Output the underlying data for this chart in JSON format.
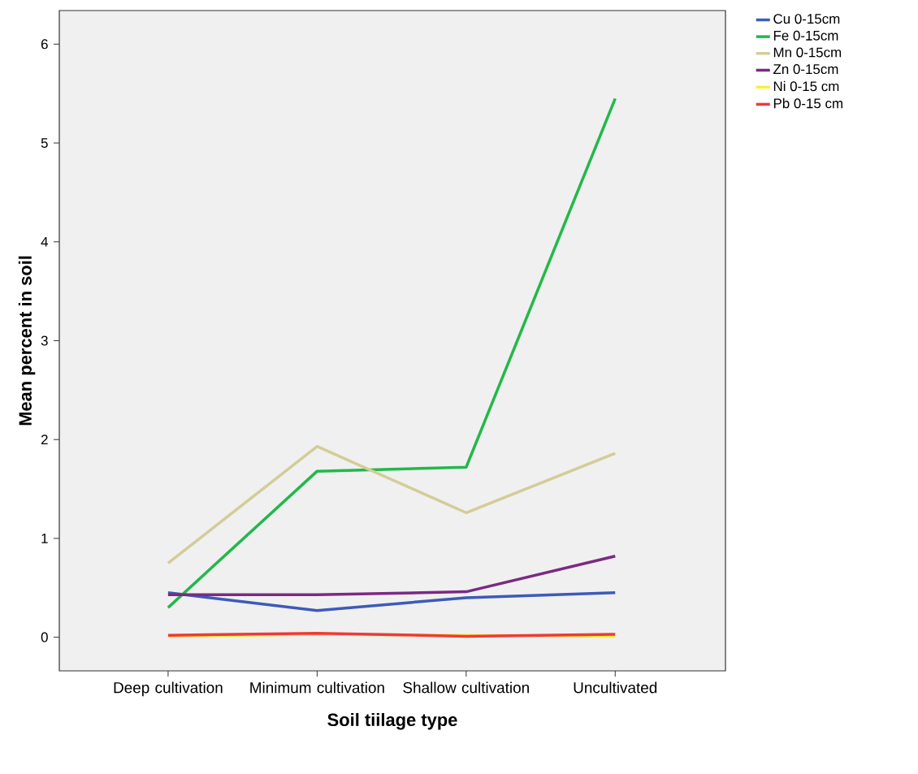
{
  "chart_data": {
    "type": "line",
    "xlabel": "Soil tiilage type",
    "ylabel": "Mean percent in soil",
    "categories": [
      "Deep cultivation",
      "Minimum cultivation",
      "Shallow cultivation",
      "Uncultivated"
    ],
    "series": [
      {
        "name": "Cu 0-15cm",
        "color": "#3e5ab8",
        "values": [
          0.45,
          0.27,
          0.4,
          0.45
        ]
      },
      {
        "name": "Fe 0-15cm",
        "color": "#22b84a",
        "values": [
          0.3,
          1.68,
          1.72,
          5.45
        ]
      },
      {
        "name": "Mn 0-15cm",
        "color": "#d4cc98",
        "values": [
          0.75,
          1.93,
          1.26,
          1.86
        ]
      },
      {
        "name": "Zn 0-15cm",
        "color": "#7b2a82",
        "values": [
          0.43,
          0.43,
          0.46,
          0.82
        ]
      },
      {
        "name": "Ni 0-15 cm",
        "color": "#f5f23a",
        "values": [
          0.01,
          0.03,
          0.02,
          0.01
        ]
      },
      {
        "name": "Pb 0-15 cm",
        "color": "#ee3a3a",
        "values": [
          0.02,
          0.04,
          0.01,
          0.03
        ]
      }
    ],
    "ylim": [
      -0.34,
      6.34
    ],
    "yticks": [
      0,
      1,
      2,
      3,
      4,
      5,
      6
    ],
    "grid": false,
    "legend": "top right",
    "marker": "none",
    "line_style": "solid"
  }
}
